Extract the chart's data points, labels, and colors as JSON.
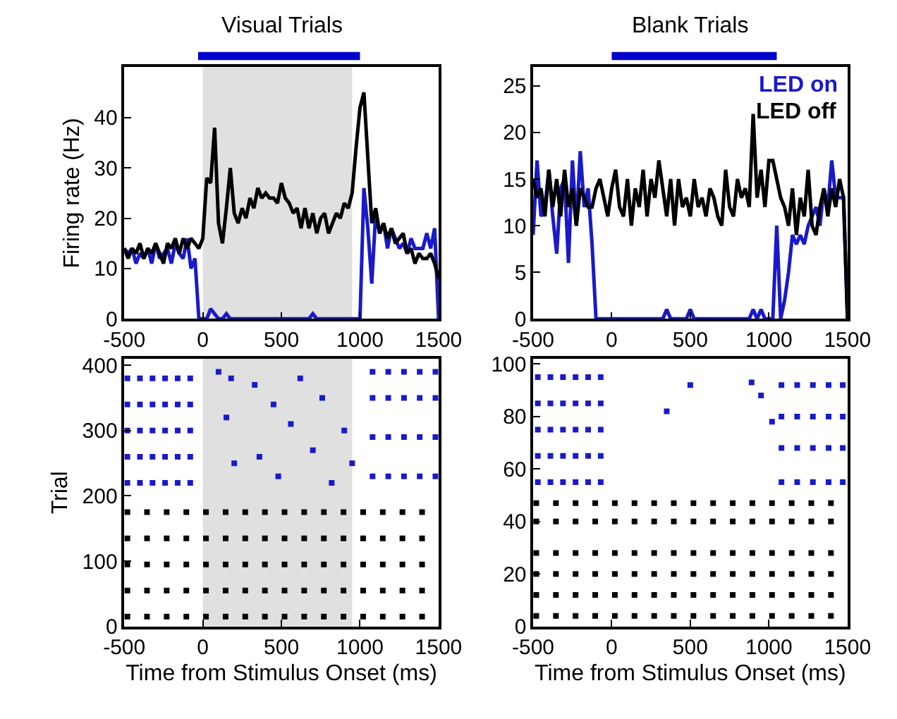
{
  "chart_data": [
    {
      "type": "bar",
      "title": "Visual Trials",
      "orientation": "horizontal",
      "categories": [
        null
      ],
      "base": [
        -30
      ],
      "values": [
        1030
      ],
      "color": "#0000cc",
      "xlim": [
        -500,
        1500
      ],
      "tick_labels": false
    },
    {
      "type": "bar",
      "title": "Blank Trials",
      "orientation": "horizontal",
      "categories": [
        null
      ],
      "base": [
        0
      ],
      "values": [
        1050
      ],
      "color": "#0000cc",
      "xlim": [
        -500,
        1500
      ],
      "tick_labels": false
    },
    {
      "type": "line",
      "ylabel": "Firing rate (Hz)",
      "xlim": [
        -500,
        1500
      ],
      "xticks": [
        -500,
        0,
        500,
        1000,
        1500
      ],
      "ylim": [
        0,
        50
      ],
      "yticks": [
        0,
        10,
        20,
        30,
        40
      ],
      "grid": false,
      "legend": false,
      "x": [
        -500,
        -475,
        -450,
        -425,
        -400,
        -375,
        -350,
        -325,
        -300,
        -275,
        -250,
        -225,
        -200,
        -175,
        -150,
        -125,
        -100,
        -75,
        -50,
        -25,
        0,
        25,
        50,
        75,
        100,
        125,
        150,
        175,
        200,
        225,
        250,
        275,
        300,
        325,
        350,
        375,
        400,
        425,
        450,
        475,
        500,
        525,
        550,
        575,
        600,
        625,
        650,
        675,
        700,
        725,
        750,
        775,
        800,
        825,
        850,
        875,
        900,
        925,
        950,
        975,
        1000,
        1025,
        1050,
        1075,
        1100,
        1125,
        1150,
        1175,
        1200,
        1225,
        1250,
        1275,
        1300,
        1325,
        1350,
        1375,
        1400,
        1425,
        1450,
        1475,
        1500
      ],
      "bands": [
        {
          "axis": "x",
          "from": 0,
          "to": 950,
          "color": "#e0e0e0"
        }
      ],
      "series": [
        {
          "color": "#1a1ac8",
          "values": [
            14,
            13,
            14,
            11,
            13,
            12,
            14,
            11,
            15,
            12,
            13,
            14,
            11,
            15,
            13,
            12,
            16,
            10,
            12,
            0,
            0,
            0,
            2,
            1,
            0,
            0,
            1,
            0,
            0,
            0,
            0,
            0,
            0,
            0,
            0,
            0,
            0,
            0,
            0,
            0,
            0,
            0,
            0,
            0,
            0,
            0,
            0,
            0,
            1,
            0,
            0,
            0,
            0,
            0,
            0,
            0,
            0,
            0,
            0,
            0,
            0,
            26,
            18,
            7,
            21,
            17,
            19,
            14,
            18,
            16,
            14,
            15,
            13,
            16,
            14,
            14,
            14,
            17,
            14,
            18,
            0
          ]
        },
        {
          "color": "#000000",
          "values": [
            14,
            12,
            14,
            13,
            15,
            12,
            14,
            13,
            15,
            13,
            11,
            15,
            14,
            16,
            13,
            16,
            14,
            16,
            15,
            14,
            16,
            28,
            27,
            38,
            19,
            15,
            22,
            30,
            21,
            19,
            22,
            20,
            24,
            22,
            26,
            24,
            25,
            24,
            24,
            23,
            27,
            24,
            23,
            21,
            22,
            18,
            22,
            18,
            21,
            17,
            20,
            21,
            17,
            19,
            21,
            20,
            23,
            22,
            25,
            34,
            42,
            45,
            32,
            19,
            22,
            17,
            19,
            16,
            18,
            15,
            16,
            17,
            13,
            14,
            11,
            13,
            12,
            12,
            13,
            11,
            8
          ]
        }
      ]
    },
    {
      "type": "line",
      "xlim": [
        -500,
        1500
      ],
      "xticks": [
        -500,
        0,
        500,
        1000,
        1500
      ],
      "ylim": [
        0,
        27
      ],
      "yticks": [
        0,
        5,
        10,
        15,
        20,
        25
      ],
      "grid": false,
      "legend": "top right",
      "x": [
        -500,
        -475,
        -450,
        -425,
        -400,
        -375,
        -350,
        -325,
        -300,
        -275,
        -250,
        -225,
        -200,
        -175,
        -150,
        -125,
        -100,
        -75,
        -50,
        -25,
        0,
        25,
        50,
        75,
        100,
        125,
        150,
        175,
        200,
        225,
        250,
        275,
        300,
        325,
        350,
        375,
        400,
        425,
        450,
        475,
        500,
        525,
        550,
        575,
        600,
        625,
        650,
        675,
        700,
        725,
        750,
        775,
        800,
        825,
        850,
        875,
        900,
        925,
        950,
        975,
        1000,
        1025,
        1050,
        1075,
        1100,
        1125,
        1150,
        1175,
        1200,
        1225,
        1250,
        1275,
        1300,
        1325,
        1350,
        1375,
        1400,
        1425,
        1450,
        1475,
        1500
      ],
      "series": [
        {
          "name": "LED on",
          "color": "#1a1ac8",
          "values": [
            9,
            17,
            11,
            12,
            16,
            11,
            7,
            14,
            15,
            6,
            17,
            10,
            18,
            12,
            14,
            8,
            0,
            0,
            0,
            0,
            0,
            0,
            0,
            0,
            0,
            0,
            0,
            0,
            0,
            0,
            0,
            0,
            0,
            0,
            1,
            0,
            0,
            0,
            0,
            0,
            1,
            0,
            0,
            0,
            0,
            0,
            0,
            0,
            0,
            0,
            0,
            0,
            0,
            0,
            0,
            0,
            1,
            0,
            1,
            0,
            0,
            0,
            10,
            0,
            2,
            5,
            9,
            8,
            9,
            8,
            10,
            11,
            12,
            10,
            14,
            12,
            17,
            13,
            13,
            13,
            0
          ]
        },
        {
          "name": "LED off",
          "color": "#000000",
          "values": [
            15,
            13,
            14,
            11,
            16,
            12,
            15,
            11,
            16,
            12,
            14,
            10,
            14,
            13,
            12,
            12,
            14,
            15,
            13,
            11,
            14,
            16,
            12,
            11,
            15,
            10,
            14,
            12,
            16,
            11,
            15,
            13,
            17,
            14,
            11,
            15,
            10,
            15,
            12,
            13,
            11,
            15,
            12,
            13,
            11,
            14,
            13,
            11,
            10,
            16,
            12,
            11,
            15,
            13,
            14,
            12,
            22,
            13,
            16,
            12,
            17,
            17,
            15,
            13,
            12,
            10,
            14,
            9,
            13,
            11,
            16,
            10,
            9,
            12,
            14,
            11,
            14,
            12,
            15,
            13,
            0
          ]
        }
      ]
    },
    {
      "type": "scatter",
      "xlabel": "Time from Stimulus Onset (ms)",
      "ylabel": "Trial",
      "xlim": [
        -500,
        1500
      ],
      "xticks": [
        -500,
        0,
        500,
        1000,
        1500
      ],
      "ylim": [
        0,
        410
      ],
      "yticks": [
        0,
        100,
        200,
        300,
        400
      ],
      "grid": false,
      "legend": false,
      "marker": "square",
      "bands": [
        {
          "axis": "x",
          "from": 0,
          "to": 950,
          "color": "#e0e0e0"
        }
      ],
      "series": [
        {
          "color": "#1a1ac8",
          "x": [
            -480,
            -400,
            -320,
            -240,
            -160,
            -80,
            -480,
            -400,
            -320,
            -240,
            -160,
            -80,
            -480,
            -400,
            -320,
            -240,
            -160,
            -80,
            -480,
            -400,
            -320,
            -240,
            -160,
            -80,
            -480,
            -400,
            -320,
            -240,
            -160,
            -80,
            1080,
            1180,
            1280,
            1380,
            1480,
            1080,
            1180,
            1280,
            1380,
            1480,
            1080,
            1180,
            1280,
            1380,
            1480,
            1080,
            1180,
            1280,
            1380,
            1480,
            100,
            150,
            200,
            330,
            450,
            480,
            560,
            620,
            700,
            760,
            820,
            900,
            950,
            180,
            360
          ],
          "values": [
            220,
            220,
            220,
            220,
            220,
            220,
            260,
            260,
            260,
            260,
            260,
            260,
            300,
            300,
            300,
            300,
            300,
            300,
            340,
            340,
            340,
            340,
            340,
            340,
            380,
            380,
            380,
            380,
            380,
            380,
            230,
            230,
            230,
            230,
            230,
            290,
            290,
            290,
            290,
            290,
            350,
            350,
            350,
            350,
            350,
            390,
            390,
            390,
            390,
            390,
            390,
            320,
            250,
            370,
            340,
            230,
            310,
            380,
            270,
            350,
            220,
            300,
            250,
            380,
            260
          ]
        },
        {
          "color": "#000000",
          "x": [
            -480,
            -355,
            -230,
            -105,
            20,
            145,
            270,
            395,
            520,
            645,
            770,
            895,
            1020,
            1145,
            1270,
            1395,
            -480,
            -355,
            -230,
            -105,
            20,
            145,
            270,
            395,
            520,
            645,
            770,
            895,
            1020,
            1145,
            1270,
            1395,
            -480,
            -355,
            -230,
            -105,
            20,
            145,
            270,
            395,
            520,
            645,
            770,
            895,
            1020,
            1145,
            1270,
            1395,
            -480,
            -355,
            -230,
            -105,
            20,
            145,
            270,
            395,
            520,
            645,
            770,
            895,
            1020,
            1145,
            1270,
            1395,
            -480,
            -355,
            -230,
            -105,
            20,
            145,
            270,
            395,
            520,
            645,
            770,
            895,
            1020,
            1145,
            1270,
            1395
          ],
          "values": [
            15,
            15,
            15,
            15,
            15,
            15,
            15,
            15,
            15,
            15,
            15,
            15,
            15,
            15,
            15,
            15,
            55,
            55,
            55,
            55,
            55,
            55,
            55,
            55,
            55,
            55,
            55,
            55,
            55,
            55,
            55,
            55,
            95,
            95,
            95,
            95,
            95,
            95,
            95,
            95,
            95,
            95,
            95,
            95,
            95,
            95,
            95,
            95,
            135,
            135,
            135,
            135,
            135,
            135,
            135,
            135,
            135,
            135,
            135,
            135,
            135,
            135,
            135,
            135,
            175,
            175,
            175,
            175,
            175,
            175,
            175,
            175,
            175,
            175,
            175,
            175,
            175,
            175,
            175,
            175
          ]
        }
      ]
    },
    {
      "type": "scatter",
      "xlabel": "Time from Stimulus Onset (ms)",
      "xlim": [
        -500,
        1500
      ],
      "xticks": [
        -500,
        0,
        500,
        1000,
        1500
      ],
      "ylim": [
        0,
        102
      ],
      "yticks": [
        0,
        20,
        40,
        60,
        80,
        100
      ],
      "grid": false,
      "legend": false,
      "marker": "square",
      "series": [
        {
          "color": "#1a1ac8",
          "x": [
            -470,
            -390,
            -310,
            -230,
            -150,
            -70,
            -470,
            -390,
            -310,
            -230,
            -150,
            -70,
            -470,
            -390,
            -310,
            -230,
            -150,
            -70,
            -470,
            -390,
            -310,
            -230,
            -150,
            -70,
            -470,
            -390,
            -310,
            -230,
            -150,
            -70,
            1080,
            1180,
            1280,
            1380,
            1470,
            1080,
            1180,
            1280,
            1380,
            1470,
            1080,
            1180,
            1280,
            1380,
            1470,
            1080,
            1180,
            1280,
            1380,
            1470,
            350,
            500,
            890,
            950,
            1020
          ],
          "values": [
            55,
            55,
            55,
            55,
            55,
            55,
            65,
            65,
            65,
            65,
            65,
            65,
            75,
            75,
            75,
            75,
            75,
            75,
            85,
            85,
            85,
            85,
            85,
            85,
            95,
            95,
            95,
            95,
            95,
            95,
            55,
            55,
            55,
            55,
            55,
            68,
            68,
            68,
            68,
            68,
            80,
            80,
            80,
            80,
            80,
            92,
            92,
            92,
            92,
            92,
            82,
            92,
            93,
            88,
            78
          ]
        },
        {
          "color": "#000000",
          "x": [
            -480,
            -355,
            -230,
            -105,
            20,
            145,
            270,
            395,
            520,
            645,
            770,
            895,
            1020,
            1145,
            1270,
            1395,
            -480,
            -355,
            -230,
            -105,
            20,
            145,
            270,
            395,
            520,
            645,
            770,
            895,
            1020,
            1145,
            1270,
            1395,
            -480,
            -355,
            -230,
            -105,
            20,
            145,
            270,
            395,
            520,
            645,
            770,
            895,
            1020,
            1145,
            1270,
            1395,
            -480,
            -355,
            -230,
            -105,
            20,
            145,
            270,
            395,
            520,
            645,
            770,
            895,
            1020,
            1145,
            1270,
            1395,
            -480,
            -355,
            -230,
            -105,
            20,
            145,
            270,
            395,
            520,
            645,
            770,
            895,
            1020,
            1145,
            1270,
            1395,
            -480,
            -355,
            -230,
            -105,
            20,
            145,
            270,
            395,
            520,
            645,
            770,
            895,
            1020,
            1145,
            1270,
            1395
          ],
          "values": [
            4,
            4,
            4,
            4,
            4,
            4,
            4,
            4,
            4,
            4,
            4,
            4,
            4,
            4,
            4,
            4,
            12,
            12,
            12,
            12,
            12,
            12,
            12,
            12,
            12,
            12,
            12,
            12,
            12,
            12,
            12,
            12,
            20,
            20,
            20,
            20,
            20,
            20,
            20,
            20,
            20,
            20,
            20,
            20,
            20,
            20,
            20,
            20,
            28,
            28,
            28,
            28,
            28,
            28,
            28,
            28,
            28,
            28,
            28,
            28,
            28,
            28,
            28,
            28,
            40,
            40,
            40,
            40,
            40,
            40,
            40,
            40,
            40,
            40,
            40,
            40,
            40,
            40,
            40,
            40,
            47,
            47,
            47,
            47,
            47,
            47,
            47,
            47,
            47,
            47,
            47,
            47,
            47,
            47,
            47,
            47
          ]
        }
      ]
    }
  ]
}
